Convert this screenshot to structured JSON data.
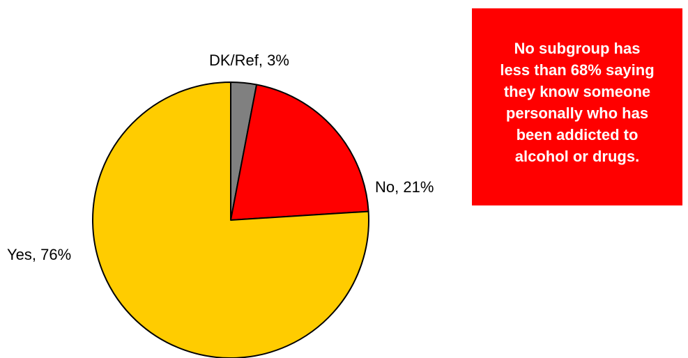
{
  "chart_data": {
    "type": "pie",
    "categories": [
      "DK/Ref",
      "No",
      "Yes"
    ],
    "values": [
      3,
      21,
      76
    ],
    "labels": [
      "DK/Ref, 3%",
      "No, 21%",
      "Yes, 76%"
    ],
    "colors": [
      "#808080",
      "#ff0000",
      "#ffcc00"
    ],
    "start": "12 o'clock",
    "direction": "clockwise",
    "legend": "none"
  },
  "callout": {
    "text": "No subgroup has\nless than 68% saying\nthey know someone\npersonally who has\nbeen addicted to\nalcohol or drugs.",
    "background": "#ff0000",
    "color": "#ffffff"
  }
}
